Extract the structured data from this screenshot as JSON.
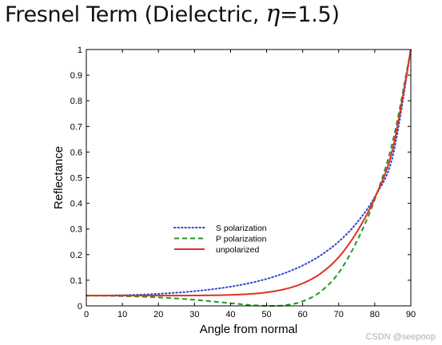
{
  "title": {
    "prefix": "Fresnel Term (Dielectric, ",
    "symbol": "η",
    "suffix": "=1.5)"
  },
  "watermark": "CSDN @seepoop",
  "chart_data": {
    "type": "line",
    "xlabel": "Angle from normal",
    "ylabel": "Reflectance",
    "xlim": [
      0,
      90
    ],
    "ylim": [
      0,
      1
    ],
    "xticks": [
      0,
      10,
      20,
      30,
      40,
      50,
      60,
      70,
      80,
      90
    ],
    "yticks": [
      0,
      0.1,
      0.2,
      0.3,
      0.4,
      0.5,
      0.6,
      0.7,
      0.8,
      0.9,
      1
    ],
    "ytick_labels": [
      "0",
      "0.1",
      "0.2",
      "0.3",
      "0.4",
      "0.5",
      "0.6",
      "0.7",
      "0.8",
      "0.9",
      "1"
    ],
    "grid": false,
    "legend_position": "center-left",
    "x": [
      0,
      5,
      10,
      15,
      20,
      25,
      30,
      35,
      40,
      45,
      50,
      55,
      60,
      65,
      70,
      75,
      80,
      85,
      90
    ],
    "series": [
      {
        "name": "S polarization",
        "color": "#3344cc",
        "style": "dotted",
        "values": [
          0.04,
          0.0404,
          0.0417,
          0.0438,
          0.047,
          0.0514,
          0.0572,
          0.0649,
          0.075,
          0.0881,
          0.1052,
          0.1278,
          0.1575,
          0.1972,
          0.2507,
          0.3238,
          0.4252,
          0.5854,
          1.0
        ]
      },
      {
        "name": "P polarization",
        "color": "#229922",
        "style": "dashed",
        "values": [
          0.04,
          0.0396,
          0.0383,
          0.0361,
          0.033,
          0.0289,
          0.0236,
          0.0173,
          0.0104,
          0.004,
          0.0002,
          0.0022,
          0.0177,
          0.0558,
          0.1291,
          0.2512,
          0.4154,
          0.6422,
          1.0
        ]
      },
      {
        "name": "unpolarized",
        "color": "#dd3322",
        "style": "solid",
        "values": [
          0.04,
          0.04,
          0.04,
          0.04,
          0.04,
          0.0401,
          0.0404,
          0.0411,
          0.0427,
          0.046,
          0.0527,
          0.065,
          0.0876,
          0.1265,
          0.1899,
          0.2875,
          0.4203,
          0.6138,
          1.0
        ]
      }
    ]
  }
}
